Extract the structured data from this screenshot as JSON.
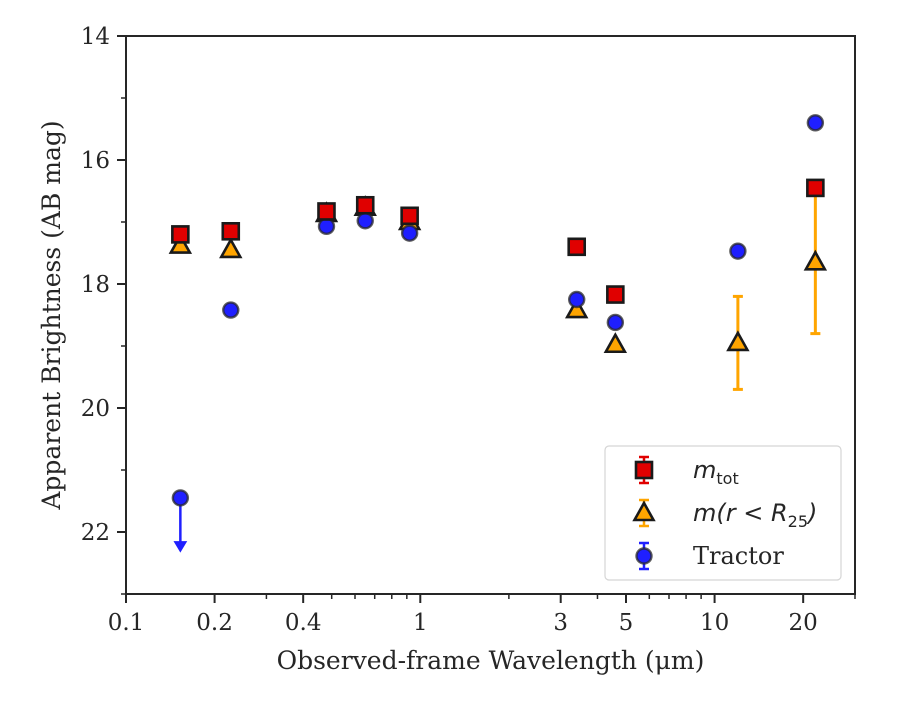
{
  "colors": {
    "m_tot": "#e00000",
    "m_r25": "#ffa500",
    "tractor": "#1f1fff",
    "edge": "#1a1a1a",
    "spine": "#262626"
  },
  "chart_data": {
    "type": "scatter",
    "xlabel": "Observed-frame Wavelength (μm)",
    "ylabel": "Apparent Brightness (AB mag)",
    "x_scale": "log",
    "xlim": [
      0.1,
      30
    ],
    "ylim": [
      23,
      14
    ],
    "y_inverted": true,
    "x_ticks": [
      {
        "value": 0.1,
        "label": "0.1"
      },
      {
        "value": 0.2,
        "label": "0.2"
      },
      {
        "value": 0.4,
        "label": "0.4"
      },
      {
        "value": 1,
        "label": "1"
      },
      {
        "value": 3,
        "label": "3"
      },
      {
        "value": 5,
        "label": "5"
      },
      {
        "value": 10,
        "label": "10"
      },
      {
        "value": 20,
        "label": "20"
      }
    ],
    "x_minor_ticks": [
      0.3,
      0.5,
      0.6,
      0.7,
      0.8,
      0.9,
      2,
      4,
      6,
      7,
      8,
      9,
      30
    ],
    "y_ticks": [
      {
        "value": 14,
        "label": "14"
      },
      {
        "value": 16,
        "label": "16"
      },
      {
        "value": 18,
        "label": "18"
      },
      {
        "value": 20,
        "label": "20"
      },
      {
        "value": 22,
        "label": "22"
      }
    ],
    "y_minor_ticks": [
      15,
      17,
      19,
      21,
      23
    ],
    "grid": false,
    "legend_position": "lower-right",
    "series": [
      {
        "key": "m_tot",
        "name": "m_tot",
        "marker": "square",
        "points": [
          {
            "x": 0.153,
            "y": 17.2
          },
          {
            "x": 0.227,
            "y": 17.15
          },
          {
            "x": 0.48,
            "y": 16.83
          },
          {
            "x": 0.65,
            "y": 16.73
          },
          {
            "x": 0.92,
            "y": 16.9
          },
          {
            "x": 3.4,
            "y": 17.4
          },
          {
            "x": 4.6,
            "y": 18.17
          },
          {
            "x": 22.0,
            "y": 16.45
          }
        ]
      },
      {
        "key": "m_r25",
        "name": "m(r < R_25)",
        "marker": "triangle",
        "points": [
          {
            "x": 0.153,
            "y": 17.38
          },
          {
            "x": 0.227,
            "y": 17.45
          },
          {
            "x": 0.48,
            "y": 16.87
          },
          {
            "x": 0.65,
            "y": 16.77
          },
          {
            "x": 0.92,
            "y": 17.0
          },
          {
            "x": 3.4,
            "y": 18.42
          },
          {
            "x": 4.6,
            "y": 18.98
          },
          {
            "x": 12.0,
            "y": 18.95,
            "err": 0.75
          },
          {
            "x": 22.0,
            "y": 17.65,
            "err": 1.15
          }
        ]
      },
      {
        "key": "tractor",
        "name": "Tractor",
        "marker": "circle",
        "points": [
          {
            "x": 0.153,
            "y": 21.45,
            "upper_limit": true
          },
          {
            "x": 0.227,
            "y": 18.42
          },
          {
            "x": 0.48,
            "y": 17.07
          },
          {
            "x": 0.65,
            "y": 16.98
          },
          {
            "x": 0.92,
            "y": 17.18
          },
          {
            "x": 3.4,
            "y": 18.25
          },
          {
            "x": 4.6,
            "y": 18.62
          },
          {
            "x": 12.0,
            "y": 17.47
          },
          {
            "x": 22.0,
            "y": 15.4
          }
        ]
      }
    ],
    "legend": [
      {
        "key": "m_tot",
        "label": "m",
        "sub": "tot",
        "marker": "square"
      },
      {
        "key": "m_r25",
        "label": "m(r < R",
        "sub": "25",
        "suffix": ")",
        "marker": "triangle"
      },
      {
        "key": "tractor",
        "label": "Tractor",
        "marker": "circle"
      }
    ]
  }
}
